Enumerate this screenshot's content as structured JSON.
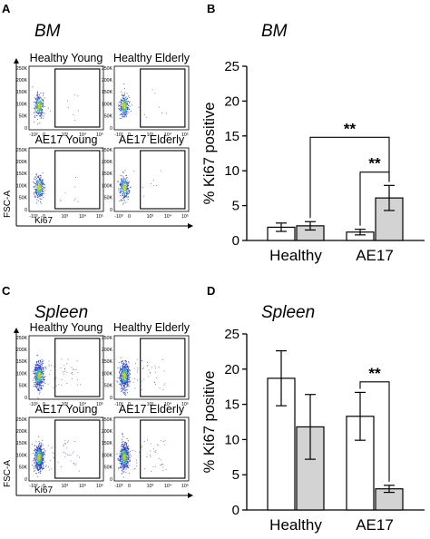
{
  "panels": {
    "A": {
      "letter": "A",
      "tissue": "BM"
    },
    "B": {
      "letter": "B",
      "tissue": "BM"
    },
    "C": {
      "letter": "C",
      "tissue": "Spleen"
    },
    "D": {
      "letter": "D",
      "tissue": "Spleen"
    }
  },
  "flow": {
    "ylabel": "FSC-A",
    "xlabel": "Ki67",
    "y_ticks": [
      "250K",
      "200K",
      "150K",
      "100K",
      "50K",
      "0"
    ],
    "x_ticks": [
      "-10³",
      "0",
      "10³",
      "10⁴",
      "10⁵"
    ],
    "plots_bm": [
      {
        "title": "Healthy Young"
      },
      {
        "title": "Healthy Elderly"
      },
      {
        "title": "AE17 Young"
      },
      {
        "title": "AE17 Elderly"
      }
    ],
    "plots_spleen": [
      {
        "title": "Healthy Young"
      },
      {
        "title": "Healthy Elderly"
      },
      {
        "title": "AE17 Young"
      },
      {
        "title": "AE17 Elderly"
      }
    ]
  },
  "chart_data": [
    {
      "type": "bar",
      "title": "BM",
      "ylabel": "% Ki67 positive",
      "categories": [
        "Healthy",
        "AE17"
      ],
      "ylim": [
        0,
        25
      ],
      "yticks": [
        0,
        5,
        10,
        15,
        20,
        25
      ],
      "series": [
        {
          "values": [
            1.9,
            1.2
          ],
          "errors": [
            0.6,
            0.4
          ],
          "color": "#ffffff"
        },
        {
          "values": [
            2.1,
            6.1
          ],
          "errors": [
            0.6,
            1.8
          ],
          "color": "#d3d3d3"
        }
      ],
      "significance": [
        {
          "label": "**",
          "from": [
            0,
            1
          ],
          "to": [
            1,
            1
          ],
          "y": 14.8
        },
        {
          "label": "**",
          "from": [
            1,
            0
          ],
          "to": [
            1,
            1
          ],
          "y": 9.8
        }
      ]
    },
    {
      "type": "bar",
      "title": "Spleen",
      "ylabel": "% Ki67 positive",
      "categories": [
        "Healthy",
        "AE17"
      ],
      "ylim": [
        0,
        25
      ],
      "yticks": [
        0,
        5,
        10,
        15,
        20,
        25
      ],
      "series": [
        {
          "values": [
            18.7,
            13.3
          ],
          "errors": [
            3.9,
            3.4
          ],
          "color": "#ffffff"
        },
        {
          "values": [
            11.8,
            3.0
          ],
          "errors": [
            4.6,
            0.5
          ],
          "color": "#d3d3d3"
        }
      ],
      "significance": [
        {
          "label": "**",
          "from": [
            1,
            0
          ],
          "to": [
            1,
            1
          ],
          "y": 18.2
        }
      ]
    }
  ]
}
